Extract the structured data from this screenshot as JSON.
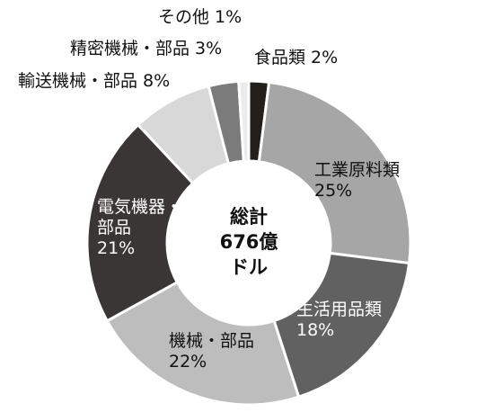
{
  "chart_data": {
    "type": "pie",
    "center_label": [
      "総計",
      "676億",
      "ドル"
    ],
    "slices": [
      {
        "label": "食品類",
        "value": 2,
        "color": "#231f1c",
        "label_lines": [
          "食品類 2%"
        ]
      },
      {
        "label": "工業原料類",
        "value": 25,
        "color": "#a6a6a6",
        "label_lines": [
          "工業原料類",
          "25%"
        ]
      },
      {
        "label": "生活用品類",
        "value": 18,
        "color": "#616161",
        "label_lines": [
          "生活用品類",
          "18%"
        ]
      },
      {
        "label": "機械・部品",
        "value": 22,
        "color": "#bdbdbd",
        "label_lines": [
          "機械・部品",
          "22%"
        ]
      },
      {
        "label": "電気機器・部品",
        "value": 21,
        "color": "#3a3636",
        "label_lines": [
          "電気機器・",
          "部品",
          "21%"
        ]
      },
      {
        "label": "輸送機械・部品",
        "value": 8,
        "color": "#d8d8d8",
        "label_lines": [
          "輸送機械・部品 8%"
        ]
      },
      {
        "label": "精密機械・部品",
        "value": 3,
        "color": "#7b7b7b",
        "label_lines": [
          "精密機械・部品 3%"
        ]
      },
      {
        "label": "その他",
        "value": 1,
        "color": "#ebebeb",
        "label_lines": [
          "その他 1%"
        ]
      }
    ]
  }
}
